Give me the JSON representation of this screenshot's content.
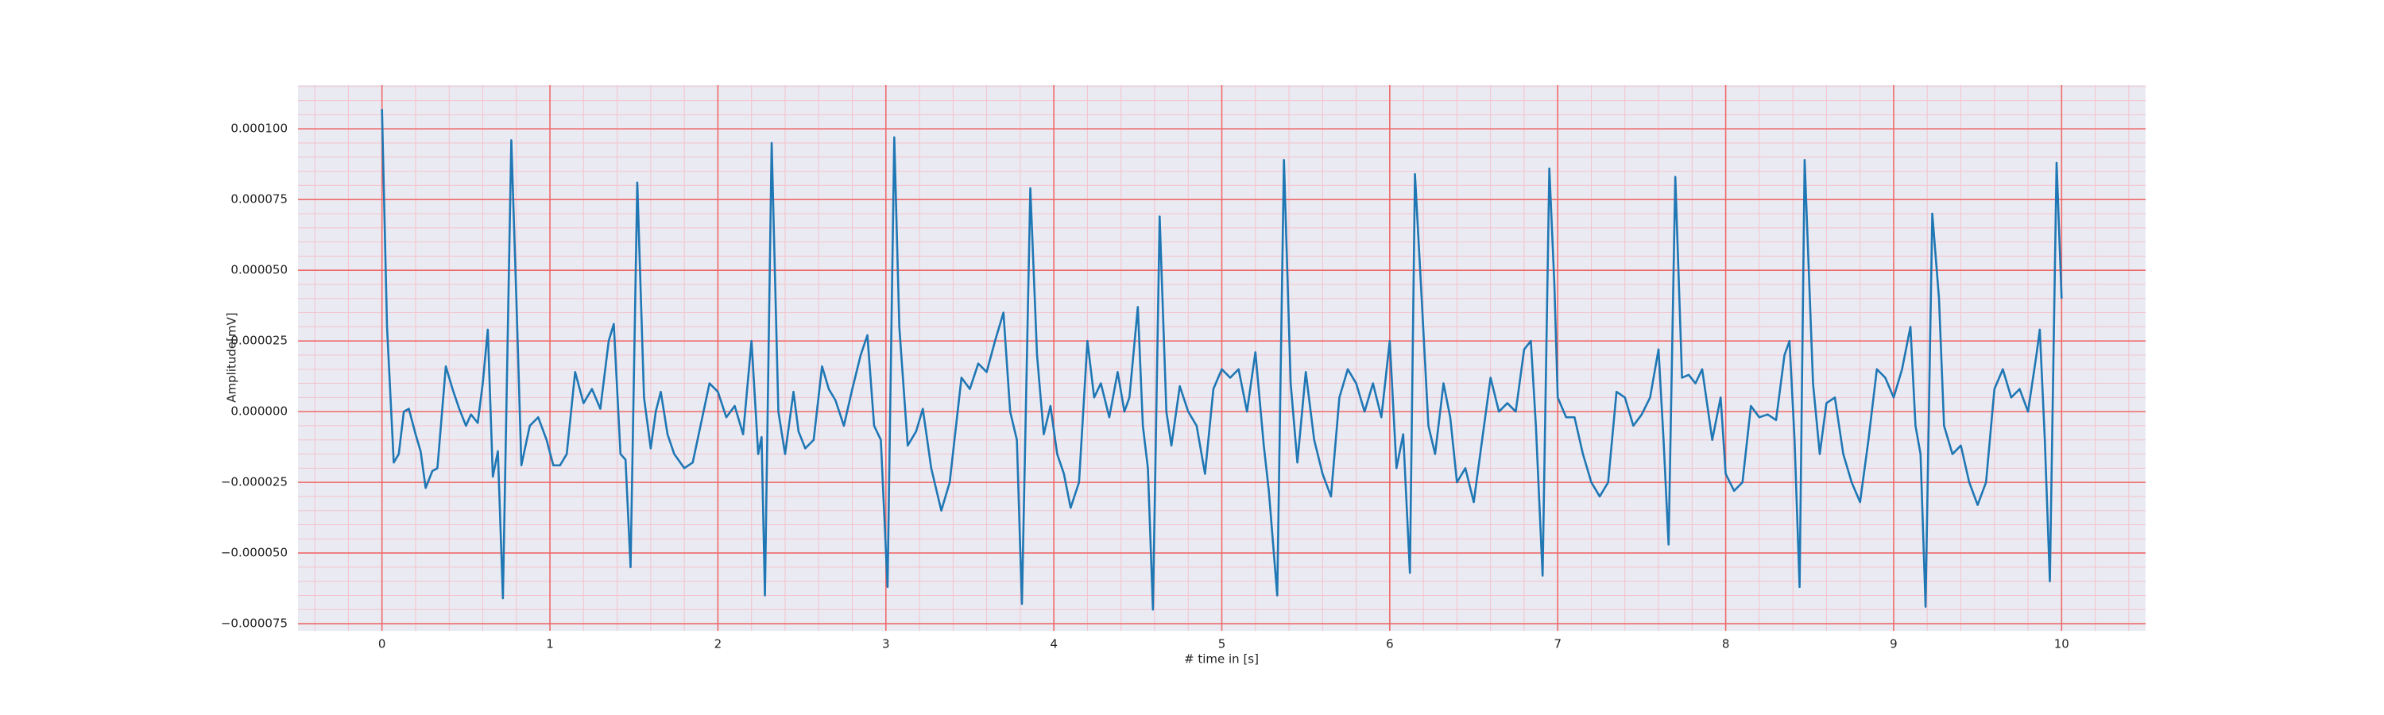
{
  "chart_data": {
    "type": "line",
    "xlabel": "# time in [s]",
    "ylabel": "Amplitude[mV]",
    "color": "#1f77b4",
    "x": [
      0,
      0.03,
      0.07,
      0.1,
      0.13,
      0.16,
      0.2,
      0.23,
      0.26,
      0.3,
      0.33,
      0.38,
      0.42,
      0.46,
      0.5,
      0.53,
      0.57,
      0.6,
      0.63,
      0.66,
      0.69,
      0.72,
      0.77,
      0.8,
      0.83,
      0.88,
      0.93,
      0.98,
      1.02,
      1.06,
      1.1,
      1.15,
      1.2,
      1.25,
      1.3,
      1.35,
      1.38,
      1.42,
      1.45,
      1.48,
      1.52,
      1.56,
      1.6,
      1.63,
      1.66,
      1.7,
      1.74,
      1.8,
      1.85,
      1.9,
      1.95,
      2,
      2.05,
      2.1,
      2.15,
      2.2,
      2.24,
      2.26,
      2.28,
      2.32,
      2.36,
      2.4,
      2.45,
      2.48,
      2.52,
      2.57,
      2.62,
      2.66,
      2.7,
      2.75,
      2.8,
      2.85,
      2.89,
      2.93,
      2.97,
      3.01,
      3.05,
      3.08,
      3.13,
      3.18,
      3.22,
      3.27,
      3.33,
      3.38,
      3.45,
      3.5,
      3.55,
      3.6,
      3.65,
      3.7,
      3.74,
      3.78,
      3.81,
      3.86,
      3.9,
      3.94,
      3.98,
      4.02,
      4.06,
      4.1,
      4.15,
      4.2,
      4.24,
      4.28,
      4.33,
      4.38,
      4.42,
      4.45,
      4.5,
      4.53,
      4.56,
      4.59,
      4.63,
      4.67,
      4.7,
      4.75,
      4.8,
      4.85,
      4.9,
      4.95,
      5,
      5.05,
      5.1,
      5.15,
      5.2,
      5.25,
      5.28,
      5.33,
      5.37,
      5.41,
      5.45,
      5.5,
      5.55,
      5.6,
      5.65,
      5.7,
      5.75,
      5.8,
      5.85,
      5.9,
      5.95,
      6,
      6.04,
      6.08,
      6.12,
      6.15,
      6.19,
      6.23,
      6.27,
      6.32,
      6.36,
      6.4,
      6.45,
      6.5,
      6.55,
      6.6,
      6.65,
      6.7,
      6.75,
      6.8,
      6.84,
      6.87,
      6.91,
      6.95,
      6.98,
      7,
      7.05,
      7.1,
      7.15,
      7.2,
      7.25,
      7.3,
      7.35,
      7.4,
      7.45,
      7.5,
      7.55,
      7.6,
      7.63,
      7.66,
      7.7,
      7.74,
      7.78,
      7.82,
      7.86,
      7.92,
      7.97,
      8,
      8.05,
      8.1,
      8.15,
      8.2,
      8.25,
      8.3,
      8.35,
      8.38,
      8.41,
      8.44,
      8.47,
      8.52,
      8.56,
      8.6,
      8.65,
      8.7,
      8.75,
      8.8,
      8.85,
      8.9,
      8.95,
      9,
      9.05,
      9.1,
      9.13,
      9.16,
      9.19,
      9.23,
      9.27,
      9.3,
      9.35,
      9.4,
      9.45,
      9.5,
      9.55,
      9.6,
      9.65,
      9.7,
      9.75,
      9.8,
      9.85,
      9.87,
      9.9,
      9.93,
      9.97,
      10
    ],
    "values": [
      0.000107,
      3e-05,
      -1.8e-05,
      -1.5e-05,
      0,
      1e-06,
      -8e-06,
      -1.4e-05,
      -2.7e-05,
      -2.1e-05,
      -2e-05,
      1.6e-05,
      8e-06,
      1e-06,
      -5e-06,
      -1e-06,
      -4e-06,
      1e-05,
      2.9e-05,
      -2.3e-05,
      -1.4e-05,
      -6.6e-05,
      9.6e-05,
      4e-05,
      -1.9e-05,
      -5e-06,
      -2e-06,
      -1e-05,
      -1.9e-05,
      -1.9e-05,
      -1.5e-05,
      1.4e-05,
      3e-06,
      8e-06,
      1e-06,
      2.5e-05,
      3.1e-05,
      -1.5e-05,
      -1.7e-05,
      -5.5e-05,
      8.1e-05,
      5e-06,
      -1.3e-05,
      0,
      7e-06,
      -8e-06,
      -1.5e-05,
      -2e-05,
      -1.8e-05,
      -4e-06,
      1e-05,
      7e-06,
      -2e-06,
      2e-06,
      -8e-06,
      2.5e-05,
      -1.5e-05,
      -9e-06,
      -6.5e-05,
      9.5e-05,
      0,
      -1.5e-05,
      7e-06,
      -7e-06,
      -1.3e-05,
      -1e-05,
      1.6e-05,
      8e-06,
      4e-06,
      -5e-06,
      8e-06,
      2e-05,
      2.7e-05,
      -5e-06,
      -1e-05,
      -6.2e-05,
      9.7e-05,
      3e-05,
      -1.2e-05,
      -7e-06,
      1e-06,
      -2e-05,
      -3.5e-05,
      -2.5e-05,
      1.2e-05,
      8e-06,
      1.7e-05,
      1.4e-05,
      2.5e-05,
      3.5e-05,
      0,
      -1e-05,
      -6.8e-05,
      7.9e-05,
      2e-05,
      -8e-06,
      2e-06,
      -1.5e-05,
      -2.2e-05,
      -3.4e-05,
      -2.5e-05,
      2.5e-05,
      5e-06,
      1e-05,
      -2e-06,
      1.4e-05,
      0,
      5e-06,
      3.7e-05,
      -5e-06,
      -2e-05,
      -7e-05,
      6.9e-05,
      0,
      -1.2e-05,
      9e-06,
      0,
      -5e-06,
      -2.2e-05,
      8e-06,
      1.5e-05,
      1.2e-05,
      1.5e-05,
      0,
      2.1e-05,
      -1.2e-05,
      -2.8e-05,
      -6.5e-05,
      8.9e-05,
      1e-05,
      -1.8e-05,
      1.4e-05,
      -1e-05,
      -2.2e-05,
      -3e-05,
      5e-06,
      1.5e-05,
      1e-05,
      0,
      1e-05,
      -2e-06,
      2.5e-05,
      -2e-05,
      -8e-06,
      -5.7e-05,
      8.4e-05,
      4e-05,
      -5e-06,
      -1.5e-05,
      1e-05,
      -2e-06,
      -2.5e-05,
      -2e-05,
      -3.2e-05,
      -1e-05,
      1.2e-05,
      0,
      3e-06,
      0,
      2.2e-05,
      2.5e-05,
      -5e-06,
      -5.8e-05,
      8.6e-05,
      4.5e-05,
      5e-06,
      -2e-06,
      -2e-06,
      -1.5e-05,
      -2.5e-05,
      -3e-05,
      -2.5e-05,
      7e-06,
      5e-06,
      -5e-06,
      -1e-06,
      5e-06,
      2.2e-05,
      -1e-05,
      -4.7e-05,
      8.3e-05,
      1.2e-05,
      1.3e-05,
      1e-05,
      1.5e-05,
      -1e-05,
      5e-06,
      -2.2e-05,
      -2.8e-05,
      -2.5e-05,
      2e-06,
      -2e-06,
      -1e-06,
      -3e-06,
      2e-05,
      2.5e-05,
      -1e-05,
      -6.2e-05,
      8.9e-05,
      1e-05,
      -1.5e-05,
      3e-06,
      5e-06,
      -1.5e-05,
      -2.5e-05,
      -3.2e-05,
      -1e-05,
      1.5e-05,
      1.2e-05,
      5e-06,
      1.5e-05,
      3e-05,
      -5e-06,
      -1.5e-05,
      -6.9e-05,
      7e-05,
      4e-05,
      -5e-06,
      -1.5e-05,
      -1.2e-05,
      -2.5e-05,
      -3.3e-05,
      -2.5e-05,
      8e-06,
      1.5e-05,
      5e-06,
      8e-06,
      0,
      2e-05,
      2.9e-05,
      -1e-05,
      -6e-05,
      8.8e-05,
      4e-05
    ],
    "xlim": [
      -0.5,
      10.5
    ],
    "ylim": [
      -7.75e-05,
      0.0001155
    ],
    "xticks": [
      0,
      1,
      2,
      3,
      4,
      5,
      6,
      7,
      8,
      9,
      10
    ],
    "yticks": [
      {
        "value": -7.5e-05,
        "label": "−0.000075"
      },
      {
        "value": -5e-05,
        "label": "−0.000050"
      },
      {
        "value": -2.5e-05,
        "label": "−0.000025"
      },
      {
        "value": 0,
        "label": "0.000000"
      },
      {
        "value": 2.5e-05,
        "label": "0.000025"
      },
      {
        "value": 5e-05,
        "label": "0.000050"
      },
      {
        "value": 7.5e-05,
        "label": "0.000075"
      },
      {
        "value": 0.0001,
        "label": "0.000100"
      }
    ],
    "grid": {
      "major_color": "#ef6a6a",
      "minor_color": "#f4c3cc",
      "minor_xstep": 0.2,
      "minor_ystep": 5e-06
    },
    "background": "#eaeaf2"
  }
}
